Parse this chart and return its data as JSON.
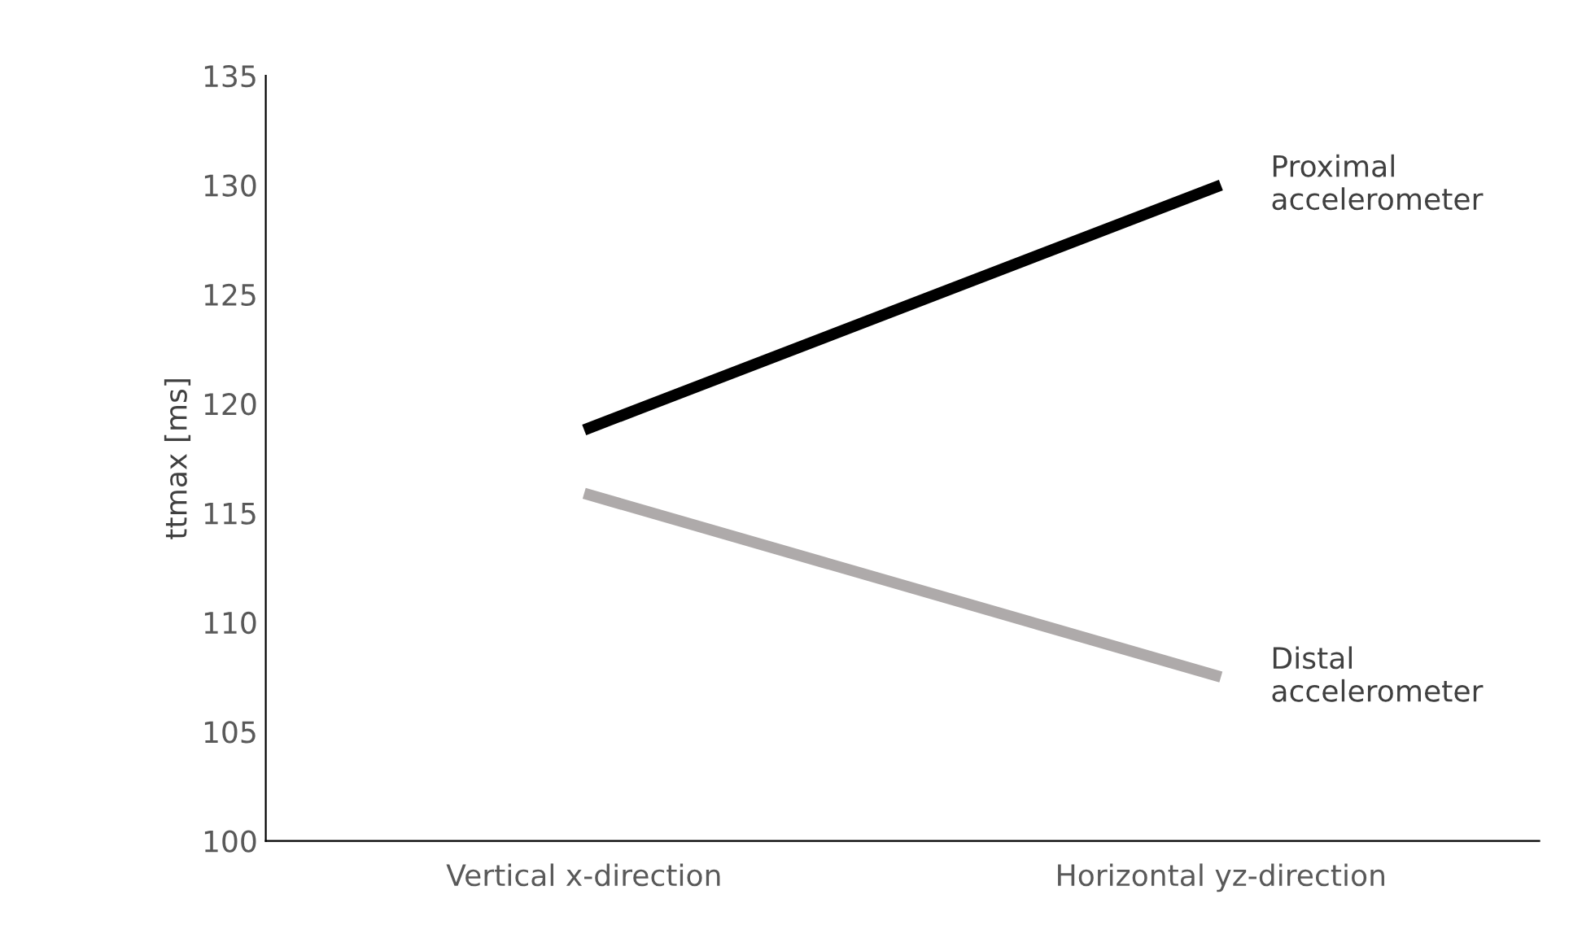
{
  "chart_data": {
    "type": "line",
    "ylabel": "ttmax [ms]",
    "categories": [
      "Vertical x-direction",
      "Horizontal yz-direction"
    ],
    "series": [
      {
        "name": "Proximal\naccelerometer",
        "color": "#000000",
        "values": [
          118.8,
          130
        ]
      },
      {
        "name": "Distal\naccelerometer",
        "color": "#aeaaaa",
        "values": [
          115.9,
          107.5
        ]
      }
    ],
    "ylim": [
      100,
      135
    ],
    "yticks": [
      100,
      105,
      110,
      115,
      120,
      125,
      130,
      135
    ],
    "grid": false,
    "legend": false,
    "marker": "none",
    "line_style": "solid"
  }
}
